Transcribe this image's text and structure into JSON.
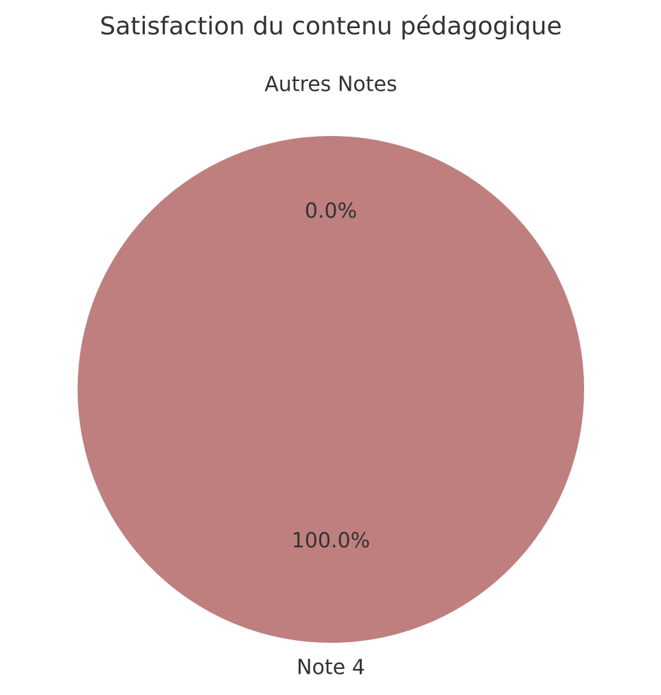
{
  "chart_data": {
    "type": "pie",
    "title": "Satisfaction du contenu pédagogique",
    "categories": [
      "Note 4",
      "Autres Notes"
    ],
    "values": [
      100,
      0
    ],
    "value_labels": [
      "100.0%",
      "0.0%"
    ],
    "colors": [
      "#bf7f7f",
      "#7fa5bf"
    ],
    "explode": [
      0,
      0.1
    ],
    "start_angle": 90
  }
}
